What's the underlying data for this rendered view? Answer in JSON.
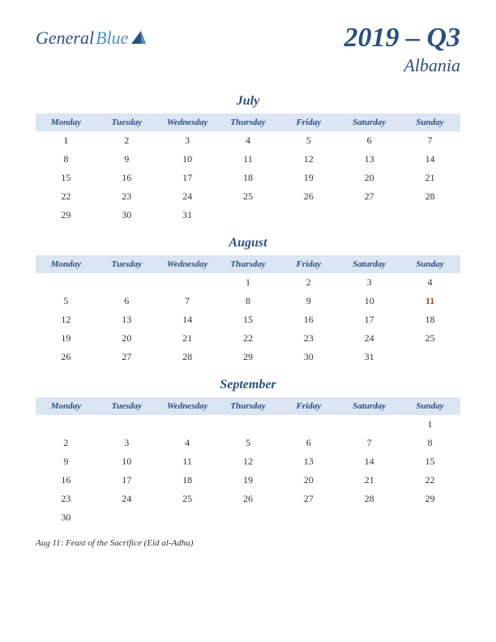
{
  "logo": {
    "part1": "General",
    "part2": "Blue"
  },
  "period": "2019 – Q3",
  "country": "Albania",
  "day_headers": [
    "Monday",
    "Tuesday",
    "Wednesday",
    "Thursday",
    "Friday",
    "Saturday",
    "Sunday"
  ],
  "months": [
    {
      "name": "July",
      "weeks": [
        [
          "1",
          "2",
          "3",
          "4",
          "5",
          "6",
          "7"
        ],
        [
          "8",
          "9",
          "10",
          "11",
          "12",
          "13",
          "14"
        ],
        [
          "15",
          "16",
          "17",
          "18",
          "19",
          "20",
          "21"
        ],
        [
          "22",
          "23",
          "24",
          "25",
          "26",
          "27",
          "28"
        ],
        [
          "29",
          "30",
          "31",
          "",
          "",
          "",
          ""
        ]
      ],
      "holidays": []
    },
    {
      "name": "August",
      "weeks": [
        [
          "",
          "",
          "",
          "1",
          "2",
          "3",
          "4"
        ],
        [
          "5",
          "6",
          "7",
          "8",
          "9",
          "10",
          "11"
        ],
        [
          "12",
          "13",
          "14",
          "15",
          "16",
          "17",
          "18"
        ],
        [
          "19",
          "20",
          "21",
          "22",
          "23",
          "24",
          "25"
        ],
        [
          "26",
          "27",
          "28",
          "29",
          "30",
          "31",
          ""
        ]
      ],
      "holidays": [
        "11"
      ]
    },
    {
      "name": "September",
      "weeks": [
        [
          "",
          "",
          "",
          "",
          "",
          "",
          "1"
        ],
        [
          "2",
          "3",
          "4",
          "5",
          "6",
          "7",
          "8"
        ],
        [
          "9",
          "10",
          "11",
          "12",
          "13",
          "14",
          "15"
        ],
        [
          "16",
          "17",
          "18",
          "19",
          "20",
          "21",
          "22"
        ],
        [
          "23",
          "24",
          "25",
          "26",
          "27",
          "28",
          "29"
        ],
        [
          "30",
          "",
          "",
          "",
          "",
          "",
          ""
        ]
      ],
      "holidays": []
    }
  ],
  "note": "Aug 11: Feast of the Sacrifice (Eid al-Adha)",
  "colors": {
    "header_bg": "#dbe5f3",
    "brand_dark": "#2a5080",
    "brand_light": "#4a90c0",
    "holiday": "#c0392b",
    "text": "#333333",
    "background": "#ffffff"
  }
}
